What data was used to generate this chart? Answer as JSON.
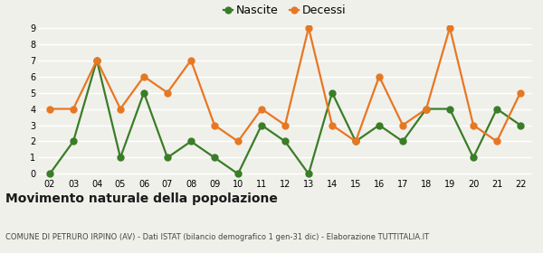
{
  "years": [
    "02",
    "03",
    "04",
    "05",
    "06",
    "07",
    "08",
    "09",
    "10",
    "11",
    "12",
    "13",
    "14",
    "15",
    "16",
    "17",
    "18",
    "19",
    "20",
    "21",
    "22"
  ],
  "nascite": [
    0,
    2,
    7,
    1,
    5,
    1,
    2,
    1,
    0,
    3,
    2,
    0,
    5,
    2,
    3,
    2,
    4,
    4,
    1,
    4,
    3
  ],
  "decessi": [
    4,
    4,
    7,
    4,
    6,
    5,
    7,
    3,
    2,
    4,
    3,
    9,
    3,
    2,
    6,
    3,
    4,
    9,
    3,
    2,
    5
  ],
  "nascite_color": "#3a7d27",
  "decessi_color": "#e87722",
  "background_color": "#f0f0eb",
  "grid_color": "#ffffff",
  "title": "Movimento naturale della popolazione",
  "subtitle": "COMUNE DI PETRURO IRPINO (AV) - Dati ISTAT (bilancio demografico 1 gen-31 dic) - Elaborazione TUTTITALIA.IT",
  "legend_nascite": "Nascite",
  "legend_decessi": "Decessi",
  "ylim_min": 0,
  "ylim_max": 9,
  "yticks": [
    0,
    1,
    2,
    3,
    4,
    5,
    6,
    7,
    8,
    9
  ],
  "marker_size": 5,
  "line_width": 1.6,
  "tick_fontsize": 7,
  "legend_fontsize": 9,
  "title_fontsize": 10,
  "subtitle_fontsize": 6
}
